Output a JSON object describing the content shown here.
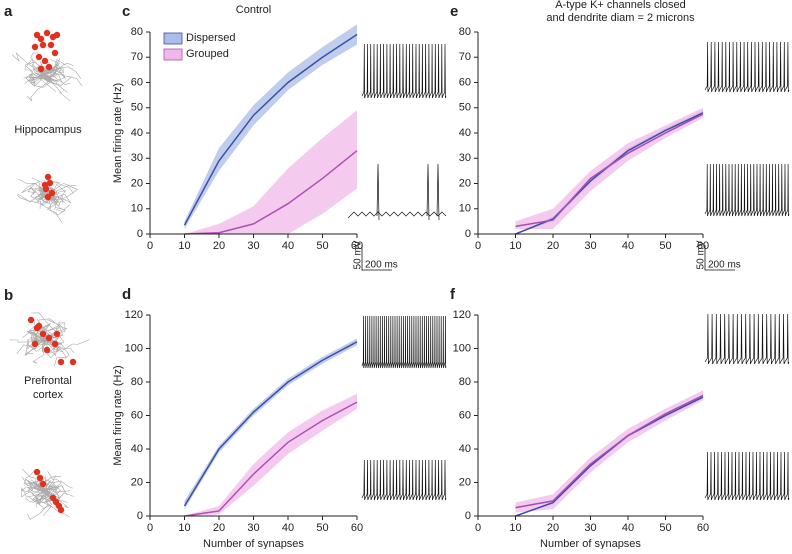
{
  "figure": {
    "panel_labels": [
      "a",
      "b"
    ],
    "regions": [
      "Hippocampus",
      "Prefrontal cortex"
    ],
    "scale_bars": [
      {
        "voltage": "50 mV",
        "time": "200 ms"
      },
      {
        "voltage": "50 mV",
        "time": "200 ms"
      }
    ]
  },
  "chart_data": [
    {
      "type": "line",
      "panel": "c",
      "title": [
        "Control"
      ],
      "ylabel": "Mean firing rate (Hz)",
      "legend": "upper left",
      "x": [
        10,
        20,
        30,
        40,
        50,
        60
      ],
      "xlim": [
        0,
        60
      ],
      "xticks": [
        0,
        10,
        20,
        30,
        40,
        50,
        60
      ],
      "ylim": [
        0,
        80
      ],
      "yticks": [
        0,
        10,
        20,
        30,
        40,
        50,
        60,
        70,
        80
      ],
      "series": [
        {
          "name": "Dispersed",
          "color": "#3f4fa8",
          "band_color": "#a9bde6",
          "values": [
            3.5,
            29,
            47,
            60,
            70,
            79
          ],
          "lower": [
            2,
            25,
            43,
            57,
            67,
            75
          ],
          "upper": [
            5,
            34,
            51,
            64,
            74,
            83
          ]
        },
        {
          "name": "Grouped",
          "color": "#b04fb4",
          "band_color": "#f0b8ea",
          "values": [
            0,
            0.5,
            4,
            12,
            22,
            33
          ],
          "lower": [
            0,
            0,
            0,
            0,
            8,
            18
          ],
          "upper": [
            0,
            4,
            11,
            26,
            38,
            49
          ]
        }
      ]
    },
    {
      "type": "line",
      "panel": "d",
      "ylabel": "Mean firing rate (Hz)",
      "xlabel": "Number of synapses",
      "x": [
        10,
        20,
        30,
        40,
        50,
        60
      ],
      "xlim": [
        0,
        60
      ],
      "xticks": [
        0,
        10,
        20,
        30,
        40,
        50,
        60
      ],
      "ylim": [
        0,
        120
      ],
      "yticks": [
        0,
        20,
        40,
        60,
        80,
        100,
        120
      ],
      "series": [
        {
          "color": "#3f4fa8",
          "band_color": "#a9bde6",
          "values": [
            6,
            40,
            62,
            80,
            93,
            104
          ],
          "lower": [
            4,
            38,
            60,
            78,
            91,
            102
          ],
          "upper": [
            9,
            42,
            64,
            82,
            95,
            106
          ]
        },
        {
          "color": "#b04fb4",
          "band_color": "#f0b8ea",
          "values": [
            0,
            3,
            25,
            44,
            57,
            68
          ],
          "lower": [
            0,
            1,
            18,
            37,
            51,
            64
          ],
          "upper": [
            0,
            6,
            31,
            50,
            63,
            73
          ]
        }
      ]
    },
    {
      "type": "line",
      "panel": "e",
      "title": [
        "A-type K+ channels closed",
        "and dendrite diam = 2 microns"
      ],
      "x": [
        10,
        20,
        30,
        40,
        50,
        60
      ],
      "xlim": [
        0,
        60
      ],
      "xticks": [
        0,
        10,
        20,
        30,
        40,
        50,
        60
      ],
      "ylim": [
        0,
        80
      ],
      "yticks": [
        0,
        10,
        20,
        30,
        40,
        50,
        60,
        70,
        80
      ],
      "series": [
        {
          "color": "#3f4fa8",
          "band_color": "#a9bde6",
          "values": [
            0,
            6,
            21,
            33,
            41,
            48
          ],
          "lower": [
            0,
            5,
            20,
            32,
            40,
            47
          ],
          "upper": [
            0,
            7,
            22,
            34,
            42,
            49
          ]
        },
        {
          "color": "#a04fb4",
          "band_color": "#f0b8ea",
          "values": [
            3,
            5.5,
            22,
            32,
            40,
            47.5
          ],
          "lower": [
            2,
            2,
            17,
            29,
            38,
            46
          ],
          "upper": [
            5,
            10,
            25,
            36,
            43,
            50
          ]
        }
      ]
    },
    {
      "type": "line",
      "panel": "f",
      "xlabel": "Number of synapses",
      "x": [
        10,
        20,
        30,
        40,
        50,
        60
      ],
      "xlim": [
        0,
        60
      ],
      "xticks": [
        0,
        10,
        20,
        30,
        40,
        50,
        60
      ],
      "ylim": [
        0,
        120
      ],
      "yticks": [
        0,
        20,
        40,
        60,
        80,
        100,
        120
      ],
      "series": [
        {
          "color": "#3f4fa8",
          "band_color": "#a9bde6",
          "values": [
            0,
            8,
            30,
            48,
            60,
            71
          ],
          "lower": [
            0,
            7,
            29,
            47,
            59,
            70
          ],
          "upper": [
            0,
            9,
            31,
            49,
            61,
            72
          ]
        },
        {
          "color": "#a04fb4",
          "band_color": "#f0b8ea",
          "values": [
            5,
            9,
            31,
            48,
            61,
            72
          ],
          "lower": [
            2,
            4,
            26,
            44,
            57,
            69
          ],
          "upper": [
            8,
            13,
            35,
            52,
            64,
            75
          ]
        }
      ]
    }
  ]
}
